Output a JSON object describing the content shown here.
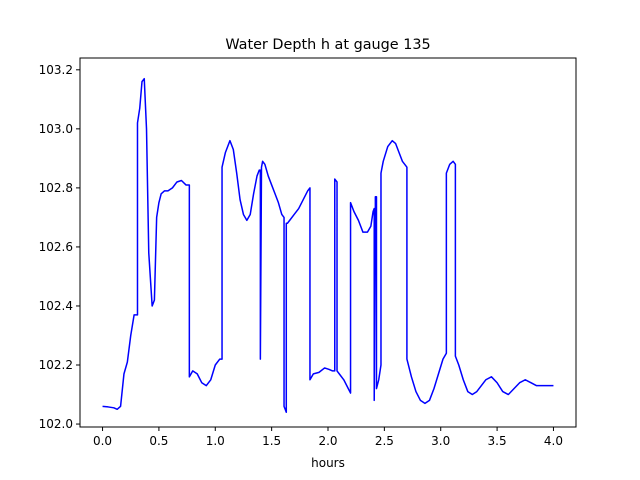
{
  "chart_data": {
    "type": "line",
    "title": "Water Depth h at gauge 135",
    "xlabel": "hours",
    "ylabel": "",
    "xlim": [
      -0.2,
      4.2
    ],
    "ylim": [
      101.99,
      103.24
    ],
    "xticks": [
      0.0,
      0.5,
      1.0,
      1.5,
      2.0,
      2.5,
      3.0,
      3.5,
      4.0
    ],
    "xtick_labels": [
      "0.0",
      "0.5",
      "1.0",
      "1.5",
      "2.0",
      "2.5",
      "3.0",
      "3.5",
      "4.0"
    ],
    "yticks": [
      102.0,
      102.2,
      102.4,
      102.6,
      102.8,
      103.0,
      103.2
    ],
    "ytick_labels": [
      "102.0",
      "102.2",
      "102.4",
      "102.6",
      "102.8",
      "103.0",
      "103.2"
    ],
    "grid": false,
    "series": [
      {
        "color": "#0000ff",
        "x": [
          0.0,
          0.05,
          0.1,
          0.13,
          0.16,
          0.19,
          0.22,
          0.25,
          0.28,
          0.31,
          0.31,
          0.33,
          0.35,
          0.37,
          0.39,
          0.41,
          0.44,
          0.46,
          0.48,
          0.5,
          0.52,
          0.55,
          0.58,
          0.62,
          0.66,
          0.7,
          0.74,
          0.77,
          0.77,
          0.8,
          0.84,
          0.88,
          0.92,
          0.96,
          1.0,
          1.04,
          1.06,
          1.06,
          1.09,
          1.13,
          1.16,
          1.19,
          1.22,
          1.25,
          1.28,
          1.31,
          1.34,
          1.37,
          1.39,
          1.4,
          1.4,
          1.41,
          1.42,
          1.44,
          1.47,
          1.5,
          1.53,
          1.56,
          1.59,
          1.61,
          1.61,
          1.62,
          1.63,
          1.63,
          1.64,
          1.66,
          1.7,
          1.74,
          1.78,
          1.82,
          1.84,
          1.84,
          1.87,
          1.92,
          1.97,
          2.01,
          2.04,
          2.06,
          2.06,
          2.08,
          2.08,
          2.1,
          2.14,
          2.18,
          2.2,
          2.2,
          2.23,
          2.27,
          2.31,
          2.35,
          2.38,
          2.4,
          2.41,
          2.41,
          2.42,
          2.42,
          2.43,
          2.43,
          2.45,
          2.47,
          2.47,
          2.49,
          2.53,
          2.57,
          2.6,
          2.63,
          2.66,
          2.7,
          2.7,
          2.74,
          2.78,
          2.82,
          2.86,
          2.9,
          2.94,
          2.98,
          3.02,
          3.05,
          3.05,
          3.08,
          3.11,
          3.13,
          3.13,
          3.16,
          3.2,
          3.24,
          3.28,
          3.32,
          3.36,
          3.4,
          3.45,
          3.5,
          3.55,
          3.6,
          3.65,
          3.7,
          3.75,
          3.8,
          3.85,
          3.9,
          3.95,
          4.0
        ],
        "y": [
          102.06,
          102.058,
          102.055,
          102.05,
          102.06,
          102.17,
          102.21,
          102.3,
          102.37,
          102.37,
          103.02,
          103.07,
          103.16,
          103.17,
          103.0,
          102.58,
          102.4,
          102.42,
          102.7,
          102.75,
          102.78,
          102.79,
          102.79,
          102.8,
          102.82,
          102.825,
          102.81,
          102.81,
          102.16,
          102.18,
          102.17,
          102.14,
          102.13,
          102.15,
          102.2,
          102.22,
          102.22,
          102.87,
          102.92,
          102.96,
          102.93,
          102.85,
          102.76,
          102.71,
          102.69,
          102.71,
          102.78,
          102.84,
          102.86,
          102.86,
          102.22,
          102.87,
          102.89,
          102.88,
          102.84,
          102.81,
          102.78,
          102.75,
          102.71,
          102.7,
          102.06,
          102.05,
          102.04,
          102.68,
          102.68,
          102.69,
          102.71,
          102.73,
          102.76,
          102.79,
          102.8,
          102.15,
          102.17,
          102.175,
          102.19,
          102.185,
          102.18,
          102.18,
          102.83,
          102.82,
          102.18,
          102.17,
          102.15,
          102.12,
          102.105,
          102.75,
          102.72,
          102.69,
          102.65,
          102.65,
          102.67,
          102.72,
          102.73,
          102.08,
          102.73,
          102.77,
          102.77,
          102.12,
          102.15,
          102.2,
          102.85,
          102.89,
          102.94,
          102.96,
          102.95,
          102.92,
          102.89,
          102.87,
          102.22,
          102.16,
          102.11,
          102.08,
          102.07,
          102.08,
          102.12,
          102.17,
          102.22,
          102.24,
          102.85,
          102.88,
          102.89,
          102.88,
          102.23,
          102.2,
          102.15,
          102.11,
          102.1,
          102.11,
          102.13,
          102.15,
          102.16,
          102.14,
          102.11,
          102.1,
          102.12,
          102.14,
          102.15,
          102.14,
          102.13,
          102.13,
          102.13,
          102.13
        ]
      }
    ]
  }
}
